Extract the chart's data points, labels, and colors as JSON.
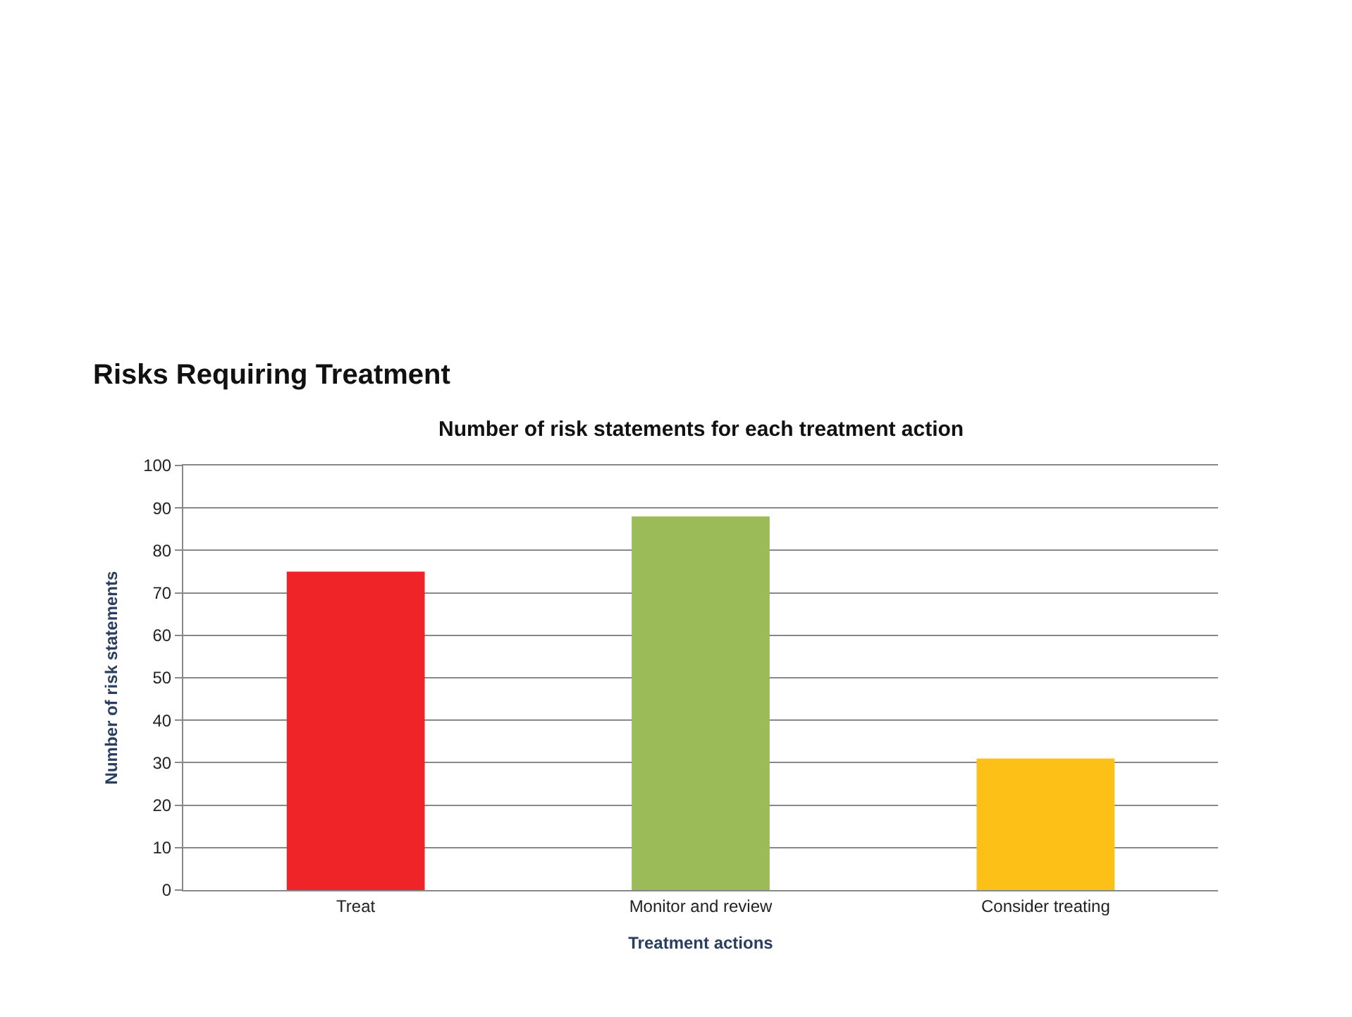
{
  "chart_data": {
    "type": "bar",
    "title": "Risks Requiring Treatment",
    "subtitle": "Number of risk statements for each treatment action",
    "xlabel": "Treatment actions",
    "ylabel": "Number of risk statements",
    "categories": [
      "Treat",
      "Monitor and review",
      "Consider treating"
    ],
    "values": [
      75,
      88,
      31
    ],
    "colors": [
      "#ee2428",
      "#9bbb59",
      "#fcc016"
    ],
    "ylim": [
      0,
      100
    ],
    "yticks": [
      0,
      10,
      20,
      30,
      40,
      50,
      60,
      70,
      80,
      90,
      100
    ],
    "grid": "y"
  }
}
